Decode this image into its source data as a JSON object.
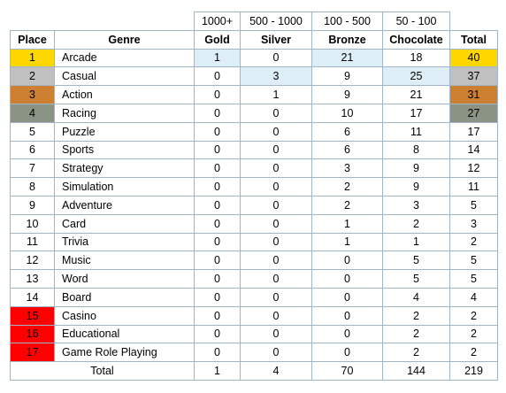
{
  "ranges": [
    "1000+",
    "500 - 1000",
    "100 - 500",
    "50 - 100"
  ],
  "headers": [
    "Place",
    "Genre",
    "Gold",
    "Silver",
    "Bronze",
    "Chocolate",
    "Total"
  ],
  "rows": [
    {
      "place": "1",
      "genre": "Arcade",
      "gold": "1",
      "silver": "0",
      "bronze": "21",
      "chocolate": "18",
      "total": "40"
    },
    {
      "place": "2",
      "genre": "Casual",
      "gold": "0",
      "silver": "3",
      "bronze": "9",
      "chocolate": "25",
      "total": "37"
    },
    {
      "place": "3",
      "genre": "Action",
      "gold": "0",
      "silver": "1",
      "bronze": "9",
      "chocolate": "21",
      "total": "31"
    },
    {
      "place": "4",
      "genre": "Racing",
      "gold": "0",
      "silver": "0",
      "bronze": "10",
      "chocolate": "17",
      "total": "27"
    },
    {
      "place": "5",
      "genre": "Puzzle",
      "gold": "0",
      "silver": "0",
      "bronze": "6",
      "chocolate": "11",
      "total": "17"
    },
    {
      "place": "6",
      "genre": "Sports",
      "gold": "0",
      "silver": "0",
      "bronze": "6",
      "chocolate": "8",
      "total": "14"
    },
    {
      "place": "7",
      "genre": "Strategy",
      "gold": "0",
      "silver": "0",
      "bronze": "3",
      "chocolate": "9",
      "total": "12"
    },
    {
      "place": "8",
      "genre": "Simulation",
      "gold": "0",
      "silver": "0",
      "bronze": "2",
      "chocolate": "9",
      "total": "11"
    },
    {
      "place": "9",
      "genre": "Adventure",
      "gold": "0",
      "silver": "0",
      "bronze": "2",
      "chocolate": "3",
      "total": "5"
    },
    {
      "place": "10",
      "genre": "Card",
      "gold": "0",
      "silver": "0",
      "bronze": "1",
      "chocolate": "2",
      "total": "3"
    },
    {
      "place": "11",
      "genre": "Trivia",
      "gold": "0",
      "silver": "0",
      "bronze": "1",
      "chocolate": "1",
      "total": "2"
    },
    {
      "place": "12",
      "genre": "Music",
      "gold": "0",
      "silver": "0",
      "bronze": "0",
      "chocolate": "5",
      "total": "5"
    },
    {
      "place": "13",
      "genre": "Word",
      "gold": "0",
      "silver": "0",
      "bronze": "0",
      "chocolate": "5",
      "total": "5"
    },
    {
      "place": "14",
      "genre": "Board",
      "gold": "0",
      "silver": "0",
      "bronze": "0",
      "chocolate": "4",
      "total": "4"
    },
    {
      "place": "15",
      "genre": "Casino",
      "gold": "0",
      "silver": "0",
      "bronze": "0",
      "chocolate": "2",
      "total": "2"
    },
    {
      "place": "16",
      "genre": "Educational",
      "gold": "0",
      "silver": "0",
      "bronze": "0",
      "chocolate": "2",
      "total": "2"
    },
    {
      "place": "17",
      "genre": "Game Role Playing",
      "gold": "0",
      "silver": "0",
      "bronze": "0",
      "chocolate": "2",
      "total": "2"
    }
  ],
  "totals": {
    "label": "Total",
    "gold": "1",
    "silver": "4",
    "bronze": "70",
    "chocolate": "144",
    "total": "219"
  },
  "colors": {
    "gold": "#ffd700",
    "silver": "#c0c0c0",
    "bronze": "#cd7f32",
    "slate": "#8a9384",
    "red": "#ff0000",
    "highlight": "#ddeef6",
    "border": "#9fb6c8"
  }
}
